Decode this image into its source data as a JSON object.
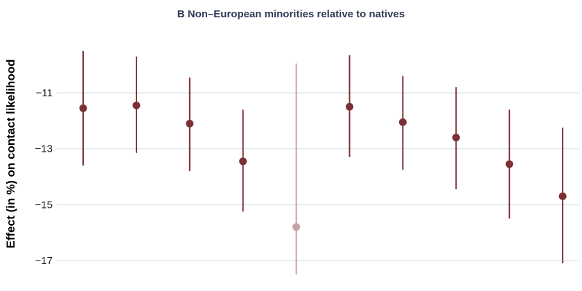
{
  "chart_data": {
    "type": "errorbar",
    "title": "B Non–European minorities relative to natives",
    "xlabel": "",
    "ylabel": "Effect (in %) on contact likelihood",
    "ylim": [
      -17.5,
      -9.5
    ],
    "yticks": [
      -11,
      -13,
      -15,
      -17
    ],
    "ytick_labels": [
      "−11",
      "−13",
      "−15",
      "−17"
    ],
    "grid": "horizontal",
    "points": [
      {
        "estimate": -11.55,
        "ci_low": -13.6,
        "ci_high": -9.5,
        "faded": false
      },
      {
        "estimate": -11.45,
        "ci_low": -13.15,
        "ci_high": -9.7,
        "faded": false
      },
      {
        "estimate": -12.1,
        "ci_low": -13.8,
        "ci_high": -10.45,
        "faded": false
      },
      {
        "estimate": -13.45,
        "ci_low": -15.25,
        "ci_high": -11.6,
        "faded": false
      },
      {
        "estimate": -15.8,
        "ci_low": -17.5,
        "ci_high": -9.95,
        "faded": true
      },
      {
        "estimate": -11.5,
        "ci_low": -13.3,
        "ci_high": -9.65,
        "faded": false
      },
      {
        "estimate": -12.05,
        "ci_low": -13.75,
        "ci_high": -10.4,
        "faded": false
      },
      {
        "estimate": -12.6,
        "ci_low": -14.45,
        "ci_high": -10.8,
        "faded": false
      },
      {
        "estimate": -13.55,
        "ci_low": -15.5,
        "ci_high": -11.6,
        "faded": false
      },
      {
        "estimate": -14.7,
        "ci_low": -17.1,
        "ci_high": -12.25,
        "faded": false
      }
    ],
    "colors": {
      "point": "#7b3035",
      "faded_point": "#c4a3a6",
      "grid": "#e6eded",
      "title": "#2f3a56"
    }
  }
}
